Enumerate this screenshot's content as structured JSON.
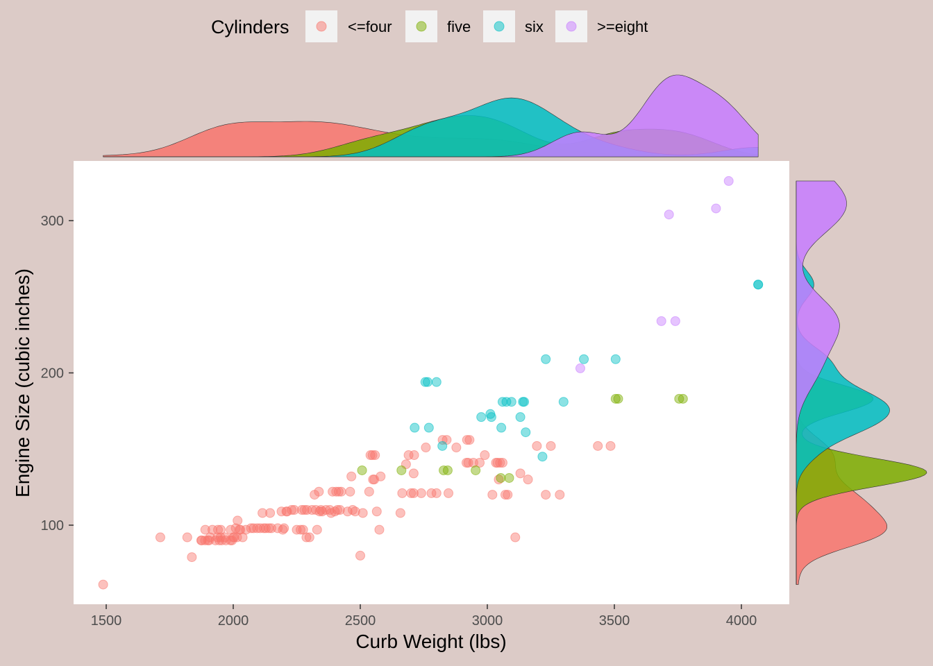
{
  "legend": {
    "title": "Cylinders",
    "items": [
      {
        "label": "<=four",
        "color": "#F8766D"
      },
      {
        "label": "five",
        "color": "#7CAE00"
      },
      {
        "label": "six",
        "color": "#00BFC4"
      },
      {
        "label": ">=eight",
        "color": "#C77CFF"
      }
    ]
  },
  "chart_data": {
    "type": "scatter",
    "xlabel": "Curb Weight (lbs)",
    "ylabel": "Engine Size (cubic inches)",
    "xlim": [
      1370,
      4200
    ],
    "ylim": [
      50,
      340
    ],
    "x_ticks": [
      1500,
      2000,
      2500,
      3000,
      3500,
      4000
    ],
    "y_ticks": [
      100,
      200,
      300
    ],
    "grid": false,
    "legend_position": "top",
    "marginal_plots": "density",
    "series": [
      {
        "name": "<=four",
        "color": "#F8766D",
        "points": [
          [
            1488,
            61
          ],
          [
            1713,
            92
          ],
          [
            1819,
            92
          ],
          [
            1837,
            79
          ],
          [
            1874,
            90
          ],
          [
            1876,
            90
          ],
          [
            1889,
            90
          ],
          [
            1890,
            97
          ],
          [
            1900,
            90
          ],
          [
            1905,
            90
          ],
          [
            1909,
            92
          ],
          [
            1918,
            97
          ],
          [
            1930,
            90
          ],
          [
            1938,
            92
          ],
          [
            1940,
            97
          ],
          [
            1945,
            90
          ],
          [
            1950,
            92
          ],
          [
            1951,
            97
          ],
          [
            1955,
            90
          ],
          [
            1967,
            92
          ],
          [
            1971,
            90
          ],
          [
            1989,
            90
          ],
          [
            1990,
            97
          ],
          [
            1995,
            90
          ],
          [
            2000,
            92
          ],
          [
            2004,
            92
          ],
          [
            2010,
            98
          ],
          [
            2015,
            92
          ],
          [
            2017,
            103
          ],
          [
            2024,
            97
          ],
          [
            2028,
            97
          ],
          [
            2037,
            92
          ],
          [
            2050,
            97
          ],
          [
            2070,
            98
          ],
          [
            2080,
            98
          ],
          [
            2094,
            98
          ],
          [
            2106,
            98
          ],
          [
            2115,
            108
          ],
          [
            2120,
            98
          ],
          [
            2128,
            98
          ],
          [
            2140,
            98
          ],
          [
            2145,
            108
          ],
          [
            2150,
            98
          ],
          [
            2175,
            98
          ],
          [
            2190,
            109
          ],
          [
            2195,
            97
          ],
          [
            2200,
            98
          ],
          [
            2209,
            109
          ],
          [
            2212,
            109
          ],
          [
            2230,
            110
          ],
          [
            2240,
            110
          ],
          [
            2250,
            97
          ],
          [
            2265,
            97
          ],
          [
            2270,
            110
          ],
          [
            2275,
            97
          ],
          [
            2280,
            110
          ],
          [
            2288,
            92
          ],
          [
            2290,
            110
          ],
          [
            2300,
            92
          ],
          [
            2310,
            110
          ],
          [
            2320,
            120
          ],
          [
            2325,
            110
          ],
          [
            2330,
            97
          ],
          [
            2337,
            122
          ],
          [
            2340,
            109
          ],
          [
            2345,
            110
          ],
          [
            2350,
            109
          ],
          [
            2365,
            110
          ],
          [
            2380,
            110
          ],
          [
            2385,
            108
          ],
          [
            2391,
            122
          ],
          [
            2400,
            109
          ],
          [
            2405,
            122
          ],
          [
            2410,
            110
          ],
          [
            2415,
            122
          ],
          [
            2420,
            110
          ],
          [
            2425,
            122
          ],
          [
            2450,
            109
          ],
          [
            2460,
            122
          ],
          [
            2465,
            132
          ],
          [
            2470,
            110
          ],
          [
            2480,
            109
          ],
          [
            2500,
            80
          ],
          [
            2510,
            108
          ],
          [
            2535,
            122
          ],
          [
            2540,
            146
          ],
          [
            2548,
            146
          ],
          [
            2550,
            130
          ],
          [
            2555,
            130
          ],
          [
            2558,
            146
          ],
          [
            2565,
            109
          ],
          [
            2575,
            97
          ],
          [
            2580,
            132
          ],
          [
            2658,
            108
          ],
          [
            2665,
            121
          ],
          [
            2680,
            140
          ],
          [
            2690,
            146
          ],
          [
            2700,
            121
          ],
          [
            2710,
            121
          ],
          [
            2712,
            146
          ],
          [
            2710,
            134
          ],
          [
            2740,
            121
          ],
          [
            2758,
            151
          ],
          [
            2780,
            121
          ],
          [
            2800,
            121
          ],
          [
            2824,
            156
          ],
          [
            2840,
            156
          ],
          [
            2847,
            121
          ],
          [
            2878,
            151
          ],
          [
            2918,
            141
          ],
          [
            2920,
            156
          ],
          [
            2925,
            141
          ],
          [
            2930,
            156
          ],
          [
            2945,
            141
          ],
          [
            2970,
            141
          ],
          [
            2990,
            146
          ],
          [
            3020,
            120
          ],
          [
            3034,
            141
          ],
          [
            3040,
            141
          ],
          [
            3045,
            130
          ],
          [
            3050,
            141
          ],
          [
            3060,
            141
          ],
          [
            3071,
            120
          ],
          [
            3080,
            120
          ],
          [
            3110,
            92
          ],
          [
            3130,
            134
          ],
          [
            3160,
            130
          ],
          [
            3195,
            152
          ],
          [
            3230,
            120
          ],
          [
            3250,
            152
          ],
          [
            3285,
            120
          ],
          [
            3435,
            152
          ],
          [
            3485,
            152
          ]
        ]
      },
      {
        "name": "five",
        "color": "#7CAE00",
        "points": [
          [
            2507,
            136
          ],
          [
            2662,
            136
          ],
          [
            2828,
            136
          ],
          [
            2844,
            136
          ],
          [
            2954,
            136
          ],
          [
            3053,
            131
          ],
          [
            3086,
            131
          ],
          [
            3505,
            183
          ],
          [
            3515,
            183
          ],
          [
            3755,
            183
          ],
          [
            3770,
            183
          ]
        ]
      },
      {
        "name": "six",
        "color": "#00BFC4",
        "points": [
          [
            2714,
            164
          ],
          [
            2756,
            194
          ],
          [
            2765,
            194
          ],
          [
            2770,
            164
          ],
          [
            2800,
            194
          ],
          [
            2823,
            152
          ],
          [
            2976,
            171
          ],
          [
            3012,
            173
          ],
          [
            3016,
            171
          ],
          [
            3055,
            164
          ],
          [
            3060,
            181
          ],
          [
            3075,
            181
          ],
          [
            3095,
            181
          ],
          [
            3130,
            171
          ],
          [
            3140,
            181
          ],
          [
            3145,
            181
          ],
          [
            3151,
            161
          ],
          [
            3217,
            145
          ],
          [
            3230,
            209
          ],
          [
            3300,
            181
          ],
          [
            3380,
            209
          ],
          [
            3505,
            209
          ],
          [
            4066,
            258
          ],
          [
            4066,
            258
          ]
        ]
      },
      {
        "name": ">=eight",
        "color": "#C77CFF",
        "points": [
          [
            3366,
            203
          ],
          [
            3685,
            234
          ],
          [
            3715,
            304
          ],
          [
            3740,
            234
          ],
          [
            3900,
            308
          ],
          [
            3950,
            326
          ]
        ]
      }
    ]
  }
}
